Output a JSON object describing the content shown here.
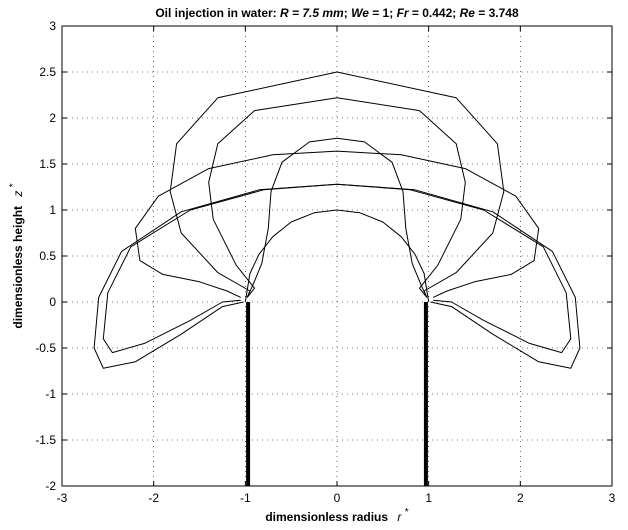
{
  "chart_data": {
    "type": "line",
    "title_parts": [
      {
        "text": "Oil injection in water: ",
        "italic": false
      },
      {
        "text": "R",
        "italic": true
      },
      {
        "text": " = 7.5 ",
        "italic": true
      },
      {
        "text": "mm",
        "italic": true
      },
      {
        "text": "; ",
        "italic": false
      },
      {
        "text": "We",
        "italic": true
      },
      {
        "text": " = 1; ",
        "italic": false
      },
      {
        "text": "Fr",
        "italic": true
      },
      {
        "text": " = 0.442; ",
        "italic": false
      },
      {
        "text": "Re",
        "italic": true
      },
      {
        "text": " = 3.748",
        "italic": false
      }
    ],
    "xlabel": "dimensionless radius",
    "xlabel_symbol": "r",
    "ylabel": "dimensionless height",
    "ylabel_symbol": "z",
    "star": "*",
    "xlim": [
      -3,
      3
    ],
    "ylim": [
      -2,
      3
    ],
    "x_ticks": [
      -3,
      -2,
      -1,
      0,
      1,
      2,
      3
    ],
    "x_tick_labels": [
      "-3",
      "-2",
      "-1",
      "0",
      "1",
      "2",
      "3"
    ],
    "y_ticks": [
      -2,
      -1.5,
      -1,
      -0.5,
      0,
      0.5,
      1,
      1.5,
      2,
      2.5,
      3
    ],
    "y_tick_labels": [
      "-2",
      "-1.5",
      "-1",
      "-0.5",
      "0",
      "0.5",
      "1",
      "1.5",
      "2",
      "2.5",
      "3"
    ],
    "grid": "dotted",
    "line_color": "#000000",
    "nozzle_walls": [
      {
        "x": -0.97,
        "y_from": -2,
        "y_to": 0
      },
      {
        "x": 0.97,
        "y_from": -2,
        "y_to": 0
      }
    ],
    "series": [
      {
        "r": [
          -1.0,
          -0.95,
          -0.85,
          -0.7,
          -0.5,
          -0.25,
          0.0,
          0.25,
          0.5,
          0.7,
          0.85,
          0.95,
          1.0
        ],
        "z": [
          0.0,
          0.31,
          0.52,
          0.71,
          0.87,
          0.97,
          1.0,
          0.97,
          0.87,
          0.71,
          0.52,
          0.31,
          0.0
        ]
      },
      {
        "r": [
          -0.98,
          -0.92,
          -0.82,
          -0.75,
          -0.72,
          -0.6,
          -0.3,
          0.0,
          0.3,
          0.6,
          0.72,
          0.75,
          0.82,
          0.92,
          0.98
        ],
        "z": [
          0.05,
          0.18,
          0.42,
          0.8,
          1.2,
          1.52,
          1.74,
          1.78,
          1.74,
          1.52,
          1.2,
          0.8,
          0.42,
          0.18,
          0.05
        ]
      },
      {
        "r": [
          -0.98,
          -0.9,
          -1.1,
          -1.35,
          -1.4,
          -1.3,
          -0.9,
          0.0,
          0.9,
          1.3,
          1.4,
          1.35,
          1.1,
          0.9,
          0.98
        ],
        "z": [
          0.05,
          0.15,
          0.4,
          0.9,
          1.3,
          1.72,
          2.08,
          2.22,
          2.08,
          1.72,
          1.3,
          0.9,
          0.4,
          0.15,
          0.05
        ]
      },
      {
        "r": [
          -0.98,
          -0.95,
          -1.3,
          -1.7,
          -1.82,
          -1.75,
          -1.3,
          0.0,
          1.3,
          1.75,
          1.82,
          1.7,
          1.3,
          0.95,
          0.98
        ],
        "z": [
          0.05,
          0.12,
          0.32,
          0.75,
          1.2,
          1.72,
          2.22,
          2.5,
          2.22,
          1.72,
          1.2,
          0.75,
          0.32,
          0.12,
          0.05
        ]
      },
      {
        "r": [
          -1.05,
          -1.2,
          -1.5,
          -1.9,
          -2.15,
          -2.2,
          -1.95,
          -1.4,
          -0.7,
          0.0,
          0.7,
          1.4,
          1.95,
          2.2,
          2.15,
          1.9,
          1.5,
          1.2,
          1.05
        ],
        "z": [
          0.05,
          0.12,
          0.22,
          0.3,
          0.45,
          0.8,
          1.15,
          1.45,
          1.6,
          1.64,
          1.6,
          1.45,
          1.15,
          0.8,
          0.45,
          0.3,
          0.22,
          0.12,
          0.05
        ]
      },
      {
        "r": [
          -1.05,
          -1.25,
          -1.6,
          -2.1,
          -2.45,
          -2.55,
          -2.5,
          -2.25,
          -1.6,
          -0.8,
          0.0,
          0.8,
          1.6,
          2.25,
          2.5,
          2.55,
          2.45,
          2.1,
          1.6,
          1.25,
          1.05
        ],
        "z": [
          0.02,
          0.0,
          -0.2,
          -0.45,
          -0.55,
          -0.4,
          0.1,
          0.6,
          1.0,
          1.22,
          1.28,
          1.22,
          1.0,
          0.6,
          0.1,
          -0.4,
          -0.55,
          -0.45,
          -0.2,
          0.0,
          0.02
        ]
      },
      {
        "r": [
          -1.02,
          -1.25,
          -1.7,
          -2.2,
          -2.55,
          -2.65,
          -2.6,
          -2.35,
          -1.7,
          -0.85,
          0.0,
          0.85,
          1.7,
          2.35,
          2.6,
          2.65,
          2.55,
          2.2,
          1.7,
          1.25,
          1.02
        ],
        "z": [
          0.0,
          -0.05,
          -0.35,
          -0.65,
          -0.72,
          -0.5,
          0.05,
          0.55,
          0.98,
          1.22,
          1.28,
          1.22,
          0.98,
          0.55,
          0.05,
          -0.5,
          -0.72,
          -0.65,
          -0.35,
          -0.05,
          0.0
        ]
      }
    ]
  }
}
